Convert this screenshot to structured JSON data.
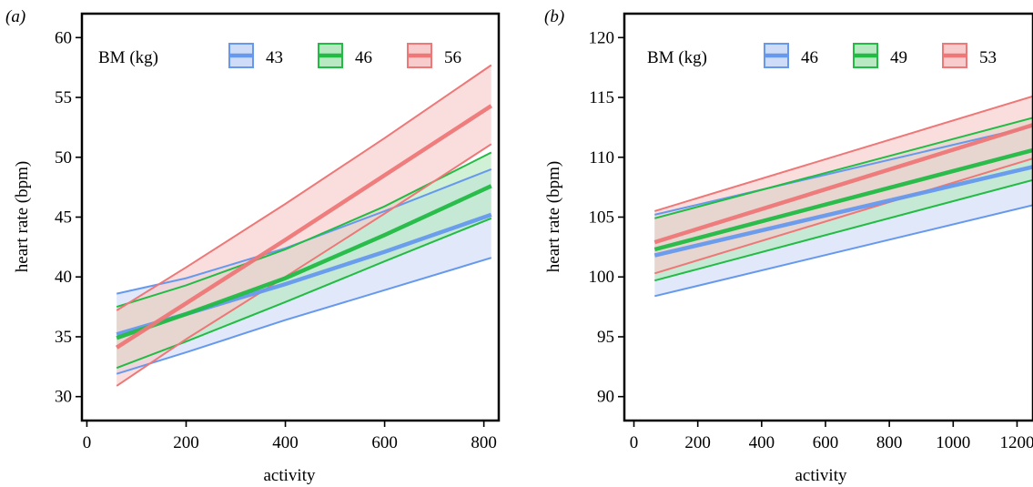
{
  "colors": {
    "blue": "#6699ee",
    "green": "#22bb44",
    "red": "#ee7777",
    "blue_fill": "#cfdcf7",
    "green_fill": "#b8e9c2",
    "red_fill": "#f8cccc"
  },
  "chart_data": [
    {
      "type": "line",
      "panel_label": "(a)",
      "xlabel": "activity",
      "ylabel": "heart rate (bpm)",
      "xlim": [
        -10,
        830
      ],
      "ylim": [
        28,
        62
      ],
      "xticks": [
        0,
        200,
        400,
        600,
        800
      ],
      "yticks": [
        30,
        35,
        40,
        45,
        50,
        55,
        60
      ],
      "legend_title": "BM (kg)",
      "legend_position": "top",
      "grid": false,
      "series": [
        {
          "name": "43",
          "color_key": "blue",
          "x": [
            60,
            200,
            400,
            600,
            815
          ],
          "fit": [
            35.2,
            36.9,
            39.4,
            42.1,
            45.2
          ],
          "lower": [
            31.9,
            33.7,
            36.4,
            38.9,
            41.6
          ],
          "upper": [
            38.6,
            39.9,
            42.4,
            45.5,
            49.0
          ]
        },
        {
          "name": "46",
          "color_key": "green",
          "x": [
            60,
            200,
            400,
            600,
            815
          ],
          "fit": [
            34.9,
            36.9,
            39.9,
            43.5,
            47.6
          ],
          "lower": [
            32.4,
            34.6,
            37.9,
            41.3,
            44.9
          ],
          "upper": [
            37.5,
            39.3,
            42.3,
            45.9,
            50.4
          ]
        },
        {
          "name": "56",
          "color_key": "red",
          "x": [
            60,
            200,
            400,
            600,
            815
          ],
          "fit": [
            34.1,
            37.8,
            43.1,
            48.5,
            54.3
          ],
          "lower": [
            30.9,
            34.8,
            40.0,
            45.3,
            51.1
          ],
          "upper": [
            37.2,
            40.8,
            46.1,
            51.6,
            57.7
          ]
        }
      ]
    },
    {
      "type": "line",
      "panel_label": "(b)",
      "xlabel": "activity",
      "ylabel": "heart rate (bpm)",
      "xlim": [
        -30,
        1250
      ],
      "ylim": [
        88,
        122
      ],
      "xticks": [
        0,
        200,
        400,
        600,
        800,
        1000,
        1200
      ],
      "yticks": [
        90,
        95,
        100,
        105,
        110,
        115,
        120
      ],
      "legend_title": "BM (kg)",
      "legend_position": "top",
      "grid": false,
      "series": [
        {
          "name": "46",
          "color_key": "blue",
          "x": [
            65,
            1250
          ],
          "fit": [
            101.8,
            109.2
          ],
          "lower": [
            98.4,
            106.0
          ],
          "upper": [
            105.2,
            112.6
          ]
        },
        {
          "name": "49",
          "color_key": "green",
          "x": [
            65,
            1250
          ],
          "fit": [
            102.3,
            110.6
          ],
          "lower": [
            99.7,
            108.1
          ],
          "upper": [
            104.9,
            113.3
          ]
        },
        {
          "name": "53",
          "color_key": "red",
          "x": [
            65,
            1250
          ],
          "fit": [
            102.9,
            112.7
          ],
          "lower": [
            100.3,
            109.9
          ],
          "upper": [
            105.5,
            115.1
          ]
        }
      ]
    }
  ]
}
